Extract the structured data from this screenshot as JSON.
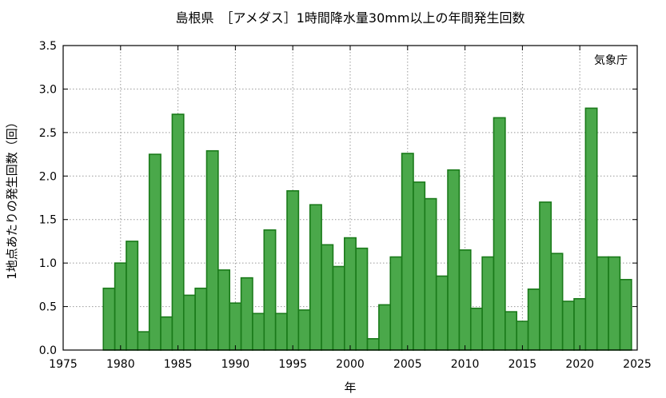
{
  "chart_data": {
    "type": "bar",
    "title": "島根県　［アメダス］1時間降水量30mm以上の年間発生回数",
    "xlabel": "年",
    "ylabel": "1地点あたりの発生回数（回）",
    "credit": "気象庁",
    "xlim": [
      1975,
      2025
    ],
    "ylim": [
      0,
      3.5
    ],
    "xticks": [
      1975,
      1980,
      1985,
      1990,
      1995,
      2000,
      2005,
      2010,
      2015,
      2020,
      2025
    ],
    "yticks": [
      0.0,
      0.5,
      1.0,
      1.5,
      2.0,
      2.5,
      3.0,
      3.5
    ],
    "ytick_labels": [
      "0.0",
      "0.5",
      "1.0",
      "1.5",
      "2.0",
      "2.5",
      "3.0",
      "3.5"
    ],
    "grid": true,
    "colors": {
      "bar_fill": "#4aa84a",
      "bar_edge": "#1a7a1a"
    },
    "x": [
      1979,
      1980,
      1981,
      1982,
      1983,
      1984,
      1985,
      1986,
      1987,
      1988,
      1989,
      1990,
      1991,
      1992,
      1993,
      1994,
      1995,
      1996,
      1997,
      1998,
      1999,
      2000,
      2001,
      2002,
      2003,
      2004,
      2005,
      2006,
      2007,
      2008,
      2009,
      2010,
      2011,
      2012,
      2013,
      2014,
      2015,
      2016,
      2017,
      2018,
      2019,
      2020,
      2021,
      2022,
      2023,
      2024
    ],
    "values": [
      0.71,
      1.0,
      1.25,
      0.21,
      2.25,
      0.38,
      2.71,
      0.63,
      0.71,
      2.29,
      0.92,
      0.54,
      0.83,
      0.42,
      1.38,
      0.42,
      1.83,
      0.46,
      1.67,
      1.21,
      0.96,
      1.29,
      1.17,
      0.13,
      0.52,
      1.07,
      2.26,
      1.93,
      1.74,
      0.85,
      2.07,
      1.15,
      0.48,
      1.07,
      2.67,
      0.44,
      0.33,
      0.7,
      1.7,
      1.11,
      0.56,
      0.59,
      2.78,
      1.07,
      1.07,
      0.81
    ]
  }
}
